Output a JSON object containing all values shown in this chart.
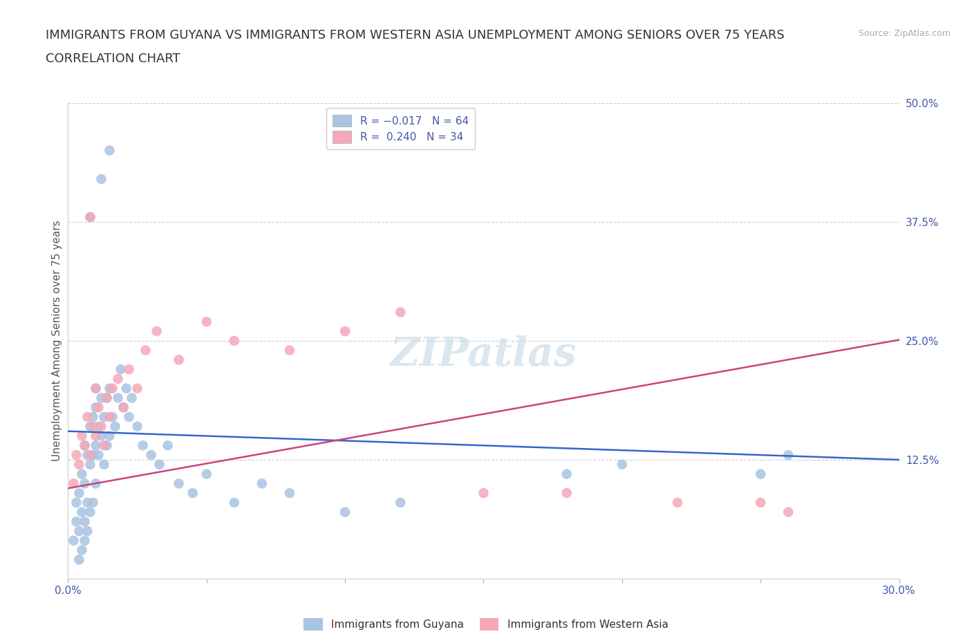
{
  "title_line1": "IMMIGRANTS FROM GUYANA VS IMMIGRANTS FROM WESTERN ASIA UNEMPLOYMENT AMONG SENIORS OVER 75 YEARS",
  "title_line2": "CORRELATION CHART",
  "source_text": "Source: ZipAtlas.com",
  "ylabel": "Unemployment Among Seniors over 75 years",
  "xlim": [
    0.0,
    0.3
  ],
  "ylim": [
    0.0,
    0.5
  ],
  "ytick_vals_right": [
    0.5,
    0.375,
    0.25,
    0.125
  ],
  "ytick_labels_right": [
    "50.0%",
    "37.5%",
    "25.0%",
    "12.5%"
  ],
  "watermark": "ZIPatlas",
  "color_guyana": "#a8c4e0",
  "color_western_asia": "#f4a8b8",
  "color_line_guyana": "#3366cc",
  "color_line_western_asia": "#cc4477",
  "label_guyana": "Immigrants from Guyana",
  "label_western_asia": "Immigrants from Western Asia",
  "legend_text_1": "R = -0.017   N = 64",
  "legend_text_2": "R =  0.240   N = 34",
  "guyana_x": [
    0.002,
    0.003,
    0.003,
    0.004,
    0.004,
    0.004,
    0.005,
    0.005,
    0.005,
    0.006,
    0.006,
    0.006,
    0.006,
    0.007,
    0.007,
    0.007,
    0.008,
    0.008,
    0.008,
    0.009,
    0.009,
    0.009,
    0.01,
    0.01,
    0.01,
    0.01,
    0.011,
    0.011,
    0.012,
    0.012,
    0.013,
    0.013,
    0.014,
    0.014,
    0.015,
    0.015,
    0.016,
    0.017,
    0.018,
    0.019,
    0.02,
    0.021,
    0.022,
    0.023,
    0.025,
    0.027,
    0.03,
    0.033,
    0.036,
    0.04,
    0.045,
    0.05,
    0.06,
    0.07,
    0.08,
    0.1,
    0.12,
    0.015,
    0.012,
    0.008,
    0.25,
    0.26,
    0.2,
    0.18
  ],
  "guyana_y": [
    0.04,
    0.06,
    0.08,
    0.02,
    0.05,
    0.09,
    0.03,
    0.07,
    0.11,
    0.04,
    0.06,
    0.1,
    0.14,
    0.05,
    0.08,
    0.13,
    0.07,
    0.12,
    0.16,
    0.08,
    0.13,
    0.17,
    0.1,
    0.14,
    0.18,
    0.2,
    0.13,
    0.16,
    0.15,
    0.19,
    0.12,
    0.17,
    0.14,
    0.19,
    0.15,
    0.2,
    0.17,
    0.16,
    0.19,
    0.22,
    0.18,
    0.2,
    0.17,
    0.19,
    0.16,
    0.14,
    0.13,
    0.12,
    0.14,
    0.1,
    0.09,
    0.11,
    0.08,
    0.1,
    0.09,
    0.07,
    0.08,
    0.45,
    0.42,
    0.38,
    0.11,
    0.13,
    0.12,
    0.11
  ],
  "western_asia_x": [
    0.002,
    0.003,
    0.004,
    0.005,
    0.006,
    0.007,
    0.008,
    0.009,
    0.01,
    0.011,
    0.012,
    0.013,
    0.014,
    0.015,
    0.016,
    0.018,
    0.02,
    0.022,
    0.025,
    0.028,
    0.032,
    0.04,
    0.05,
    0.06,
    0.08,
    0.1,
    0.12,
    0.15,
    0.18,
    0.22,
    0.008,
    0.01,
    0.25,
    0.26
  ],
  "western_asia_y": [
    0.1,
    0.13,
    0.12,
    0.15,
    0.14,
    0.17,
    0.13,
    0.16,
    0.15,
    0.18,
    0.16,
    0.14,
    0.19,
    0.17,
    0.2,
    0.21,
    0.18,
    0.22,
    0.2,
    0.24,
    0.26,
    0.23,
    0.27,
    0.25,
    0.24,
    0.26,
    0.28,
    0.09,
    0.09,
    0.08,
    0.38,
    0.2,
    0.08,
    0.07
  ],
  "background_color": "#ffffff",
  "grid_color": "#cccccc",
  "title_fontsize": 13,
  "axis_label_fontsize": 11,
  "tick_fontsize": 11,
  "legend_fontsize": 11,
  "watermark_fontsize": 42,
  "watermark_color": "#ccdde8",
  "source_fontsize": 9,
  "source_color": "#aaaaaa"
}
